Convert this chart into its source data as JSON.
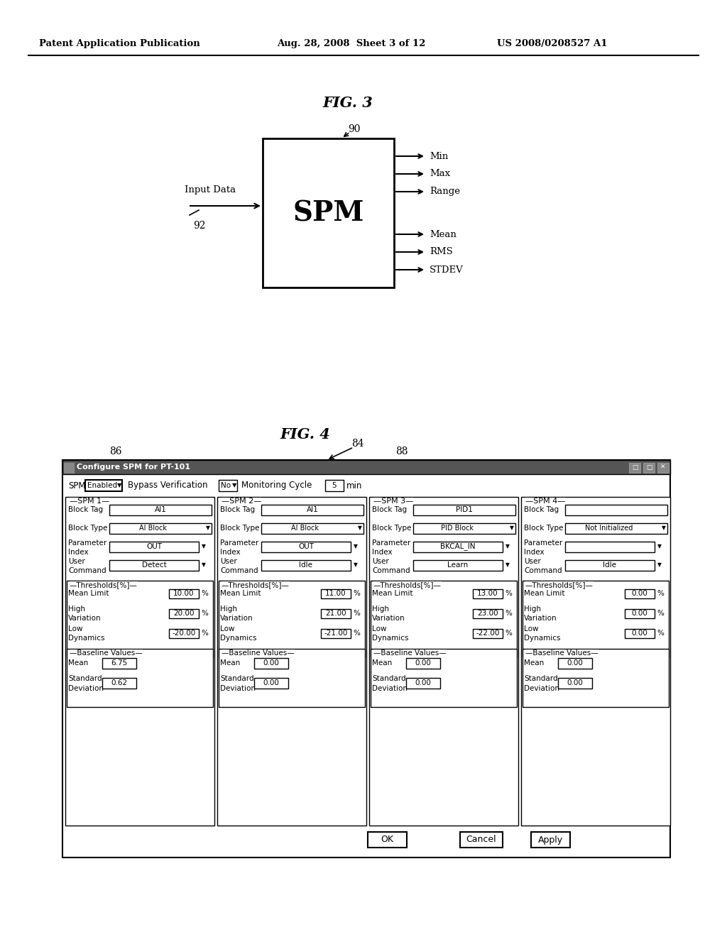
{
  "bg_color": "#ffffff",
  "header_left": "Patent Application Publication",
  "header_mid": "Aug. 28, 2008  Sheet 3 of 12",
  "header_right": "US 2008/0208527 A1",
  "fig3_title": "FIG. 3",
  "fig4_title": "FIG. 4",
  "fig3_label_90": "90",
  "fig3_label_92": "92",
  "fig3_spm_text": "SPM",
  "fig3_input_label": "Input Data",
  "fig3_outputs_top": [
    "Min",
    "Max",
    "Range"
  ],
  "fig3_outputs_bot": [
    "Mean",
    "RMS",
    "STDEV"
  ],
  "fig4_dialog_title": "Configure SPM for PT-101",
  "fig4_label_84": "84",
  "fig4_label_86": "86",
  "fig4_label_88": "88",
  "fig4_spm_enabled_label": "SPM",
  "fig4_spm_enabled_value": "Enabled",
  "fig4_bypass_label": "Bypass Verification",
  "fig4_bypass_value": "No",
  "fig4_monitoring_label": "Monitoring Cycle",
  "fig4_monitoring_value": "5",
  "fig4_monitoring_unit": "min",
  "fig4_spm_columns": [
    "SPM 1",
    "SPM 2",
    "SPM 3",
    "SPM 4"
  ],
  "fig4_block_tags": [
    "AI1",
    "AI1",
    "PID1",
    ""
  ],
  "fig4_block_types": [
    "AI Block",
    "AI Block",
    "PID Block",
    "Not Initialized"
  ],
  "fig4_param_indexes": [
    "OUT",
    "OUT",
    "BKCAL_IN",
    ""
  ],
  "fig4_user_commands": [
    "Detect",
    "Idle",
    "Learn",
    "Idle"
  ],
  "fig4_mean_limits": [
    "10.00",
    "11.00",
    "13.00",
    "0.00"
  ],
  "fig4_high_variations": [
    "20.00",
    "21.00",
    "23.00",
    "0.00"
  ],
  "fig4_low_dynamics": [
    "-20.00",
    "-21.00",
    "-22.00",
    "0.00"
  ],
  "fig4_means": [
    "6.75",
    "0.00",
    "0.00",
    "0.00"
  ],
  "fig4_std_devs": [
    "0.62",
    "0.00",
    "0.00",
    "0.00"
  ],
  "fig4_buttons": [
    "OK",
    "Cancel",
    "Apply"
  ]
}
